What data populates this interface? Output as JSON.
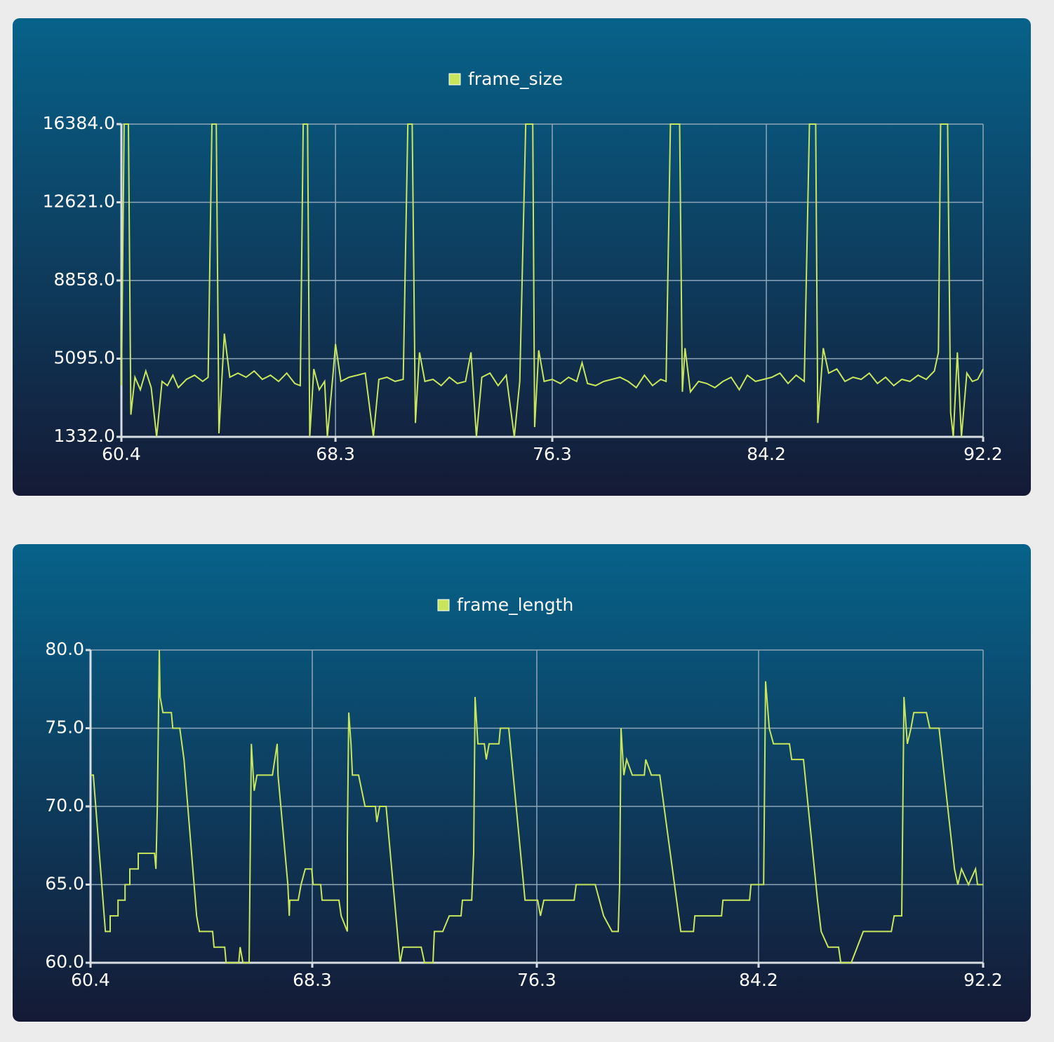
{
  "chart_data": [
    {
      "type": "line",
      "series": [
        {
          "name": "frame_size",
          "color": "#c8e65c",
          "x": [
            60.4,
            60.5,
            60.66,
            60.75,
            60.9,
            61.1,
            61.3,
            61.5,
            61.7,
            61.9,
            62.1,
            62.3,
            62.5,
            62.8,
            63.1,
            63.4,
            63.6,
            63.74,
            63.9,
            64.0,
            64.2,
            64.4,
            64.7,
            65.0,
            65.3,
            65.6,
            65.9,
            66.2,
            66.5,
            66.8,
            67.0,
            67.11,
            67.27,
            67.35,
            67.5,
            67.7,
            67.9,
            68.0,
            68.2,
            68.3,
            68.5,
            68.8,
            69.1,
            69.4,
            69.7,
            69.9,
            70.2,
            70.5,
            70.8,
            70.97,
            71.13,
            71.25,
            71.4,
            71.6,
            71.9,
            72.2,
            72.5,
            72.8,
            73.1,
            73.3,
            73.5,
            73.7,
            74.0,
            74.3,
            74.6,
            74.9,
            75.1,
            75.32,
            75.58,
            75.65,
            75.8,
            76.0,
            76.3,
            76.6,
            76.9,
            77.2,
            77.4,
            77.6,
            77.9,
            78.2,
            78.5,
            78.8,
            79.1,
            79.4,
            79.7,
            80.0,
            80.3,
            80.5,
            80.66,
            81.0,
            81.1,
            81.2,
            81.4,
            81.7,
            82.0,
            82.3,
            82.6,
            82.9,
            83.2,
            83.5,
            83.8,
            84.1,
            84.4,
            84.7,
            85.0,
            85.3,
            85.6,
            85.79,
            86.02,
            86.1,
            86.3,
            86.5,
            86.8,
            87.1,
            87.4,
            87.7,
            88.0,
            88.3,
            88.6,
            88.9,
            89.2,
            89.5,
            89.8,
            90.1,
            90.4,
            90.55,
            90.63,
            90.89,
            91.0,
            91.1,
            91.25,
            91.4,
            91.6,
            91.8,
            92.0,
            92.2
          ],
          "values": [
            3800,
            16384,
            16384,
            2400,
            4200,
            3600,
            4500,
            3700,
            1332,
            4000,
            3800,
            4300,
            3700,
            4100,
            4300,
            4000,
            4200,
            16384,
            16384,
            1500,
            6300,
            4200,
            4400,
            4200,
            4500,
            4100,
            4300,
            4000,
            4400,
            3900,
            3800,
            16384,
            16384,
            1332,
            4600,
            3600,
            4000,
            1332,
            4200,
            5800,
            4000,
            4200,
            4300,
            4400,
            1332,
            4100,
            4200,
            4000,
            4100,
            16384,
            16384,
            2000,
            5400,
            4000,
            4100,
            3800,
            4200,
            3900,
            4000,
            5400,
            1332,
            4200,
            4400,
            3800,
            4300,
            1332,
            4000,
            16384,
            16384,
            1800,
            5500,
            4000,
            4100,
            3900,
            4200,
            4000,
            4900,
            3900,
            3800,
            4000,
            4100,
            4200,
            4000,
            3700,
            4300,
            3800,
            4100,
            4000,
            16384,
            16384,
            3500,
            5600,
            3500,
            4000,
            3900,
            3700,
            4000,
            4200,
            3600,
            4300,
            4000,
            4100,
            4200,
            4400,
            3900,
            4300,
            4000,
            16384,
            16384,
            2000,
            5600,
            4400,
            4600,
            4000,
            4200,
            4100,
            4400,
            3900,
            4200,
            3800,
            4100,
            4000,
            4300,
            4100,
            4500,
            5400,
            16384,
            16384,
            2500,
            1332,
            5400,
            1332,
            4400,
            4000,
            4100,
            4600
          ]
        }
      ],
      "xlim": [
        60.4,
        92.2
      ],
      "xticks": [
        60.4,
        68.3,
        76.3,
        84.2,
        92.2
      ],
      "ylim": [
        1332,
        16384
      ],
      "yticks": [
        {
          "value": 1332,
          "label": "1332.0"
        },
        {
          "value": 5095,
          "label": "5095.0"
        },
        {
          "value": 8858,
          "label": "8858.0"
        },
        {
          "value": 12621,
          "label": "12621.0"
        },
        {
          "value": 16384,
          "label": "16384.0"
        }
      ],
      "grid": true,
      "legend": "top"
    },
    {
      "type": "line",
      "series": [
        {
          "name": "frame_length",
          "color": "#c8e65c",
          "x": [
            60.4,
            60.5,
            60.93,
            61.1,
            61.1,
            61.38,
            61.38,
            61.63,
            61.63,
            61.8,
            61.8,
            62.1,
            62.1,
            62.68,
            62.73,
            62.78,
            62.85,
            62.88,
            62.98,
            63.28,
            63.33,
            63.58,
            63.73,
            64.18,
            64.28,
            64.75,
            64.8,
            65.18,
            65.23,
            65.68,
            65.73,
            65.83,
            66.05,
            66.13,
            66.23,
            66.33,
            66.88,
            67.05,
            67.08,
            67.43,
            67.48,
            67.5,
            67.8,
            67.9,
            68.05,
            68.28,
            68.33,
            68.6,
            68.65,
            69.25,
            69.33,
            69.55,
            69.55,
            69.6,
            69.68,
            69.73,
            69.95,
            70.18,
            70.55,
            70.6,
            70.7,
            70.93,
            71.43,
            71.53,
            72.18,
            72.3,
            72.6,
            72.65,
            72.95,
            73.18,
            73.6,
            73.65,
            73.98,
            74.05,
            74.1,
            74.2,
            74.43,
            74.5,
            74.6,
            74.95,
            75.0,
            75.3,
            75.88,
            76.33,
            76.43,
            76.55,
            77.63,
            77.7,
            78.38,
            78.68,
            78.98,
            79.2,
            79.25,
            79.3,
            79.4,
            79.5,
            79.7,
            80.13,
            80.18,
            80.38,
            80.68,
            81.43,
            81.88,
            81.93,
            82.88,
            82.93,
            83.88,
            83.93,
            84.38,
            84.45,
            84.58,
            84.73,
            85.3,
            85.38,
            85.8,
            86.3,
            86.43,
            86.68,
            87.05,
            87.13,
            87.5,
            87.93,
            88.93,
            89.03,
            89.3,
            89.38,
            89.5,
            89.63,
            89.73,
            90.18,
            90.3,
            90.63,
            91.18,
            91.3,
            91.43,
            91.68,
            91.93,
            92.0,
            92.2
          ],
          "values": [
            72,
            72,
            62,
            62,
            63,
            63,
            64,
            64,
            65,
            65,
            66,
            66,
            67,
            67,
            66,
            70,
            80,
            77,
            76,
            76,
            75,
            75,
            73,
            63,
            62,
            62,
            61,
            61,
            60,
            60,
            61,
            60,
            60,
            74,
            71,
            72,
            72,
            74,
            72,
            65,
            63,
            64,
            64,
            65,
            66,
            66,
            65,
            65,
            64,
            64,
            63,
            62,
            68,
            76,
            74,
            72,
            72,
            70,
            70,
            69,
            70,
            70,
            60,
            61,
            61,
            60,
            60,
            62,
            62,
            63,
            63,
            64,
            64,
            67,
            77,
            74,
            74,
            73,
            74,
            74,
            75,
            75,
            64,
            64,
            63,
            64,
            64,
            65,
            65,
            63,
            62,
            62,
            65,
            75,
            72,
            73,
            72,
            72,
            73,
            72,
            72,
            62,
            62,
            63,
            63,
            64,
            64,
            65,
            65,
            78,
            75,
            74,
            74,
            73,
            73,
            64,
            62,
            61,
            61,
            60,
            60,
            62,
            62,
            63,
            63,
            77,
            74,
            75,
            76,
            76,
            75,
            75,
            66,
            65,
            66,
            65,
            66,
            65,
            65
          ]
        }
      ],
      "xlim": [
        60.4,
        92.2
      ],
      "xticks": [
        60.4,
        68.3,
        76.3,
        84.2,
        92.2
      ],
      "ylim": [
        60,
        80
      ],
      "yticks": [
        {
          "value": 60,
          "label": "60.0"
        },
        {
          "value": 65,
          "label": "65.0"
        },
        {
          "value": 70,
          "label": "70.0"
        },
        {
          "value": 75,
          "label": "75.0"
        },
        {
          "value": 80,
          "label": "80.0"
        }
      ],
      "grid": true,
      "legend": "top"
    }
  ]
}
